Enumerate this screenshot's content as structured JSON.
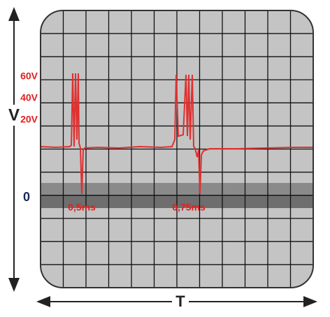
{
  "y_axis": {
    "label": "V",
    "levels": [
      "60V",
      "40V",
      "20V"
    ],
    "zero": "0"
  },
  "x_axis": {
    "label": "T"
  },
  "annotations": [
    "0,5ms",
    "0,75ms"
  ]
}
